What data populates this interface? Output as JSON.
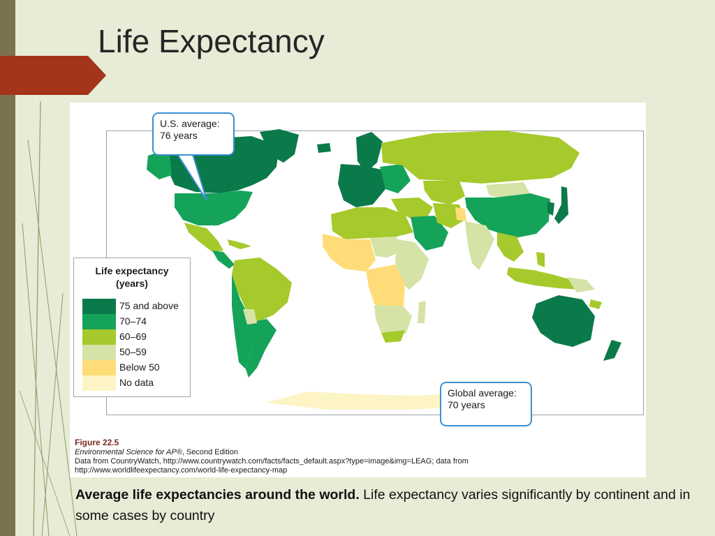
{
  "slide": {
    "title": "Life Expectancy",
    "accent_color": "#a4341a"
  },
  "figure": {
    "callout_us": {
      "line1": "U.S. average:",
      "line2": "76 years"
    },
    "callout_global": {
      "line1": "Global average:",
      "line2": "70 years"
    },
    "legend": {
      "title_line1": "Life expectancy",
      "title_line2": "(years)",
      "items": [
        {
          "label": "75 and above",
          "color": "#0b7a4a"
        },
        {
          "label": "70–74",
          "color": "#15a35a"
        },
        {
          "label": "60–69",
          "color": "#a6c92c"
        },
        {
          "label": "50–59",
          "color": "#d5e3a6"
        },
        {
          "label": "Below 50",
          "color": "#fedd78"
        },
        {
          "label": "No data",
          "color": "#fcf4c4"
        }
      ]
    },
    "figure_number": "Figure 22.5",
    "credit_title": "Environmental Science for AP®",
    "credit_edition": ", Second Edition",
    "credit_line2": "Data from CountryWatch, http://www.countrywatch.com/facts/facts_default.aspx?type=image&img=LEAG; data from",
    "credit_line3": "http://www.worldlifeexpectancy.com/world-life-expectancy-map"
  },
  "caption": {
    "bold": "Average life expectancies around the world.",
    "rest": " Life expectancy varies significantly by continent and in some cases by country"
  }
}
